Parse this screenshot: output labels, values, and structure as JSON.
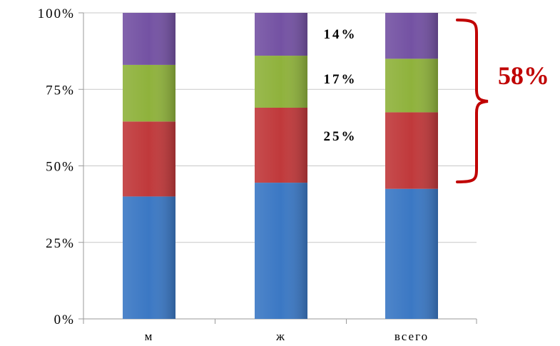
{
  "chart_data": {
    "type": "bar",
    "stacked": true,
    "categories": [
      "м",
      "ж",
      "всего"
    ],
    "y_ticks": [
      "0%",
      "25%",
      "50%",
      "75%",
      "100%"
    ],
    "ylim": [
      0,
      100
    ],
    "grid": true,
    "series": [
      {
        "values": [
          40,
          44.5,
          42.5
        ],
        "color": "#3b78c4"
      },
      {
        "values": [
          24.5,
          24.5,
          25
        ],
        "color": "#c0393b"
      },
      {
        "values": [
          18.5,
          17,
          17.5
        ],
        "color": "#8fb23c"
      },
      {
        "values": [
          17,
          14,
          15
        ],
        "color": "#7452a3"
      }
    ],
    "data_labels": [
      "14%",
      "17%",
      "25%"
    ],
    "bracket_total": {
      "label": "58%",
      "color": "#c00000"
    }
  }
}
